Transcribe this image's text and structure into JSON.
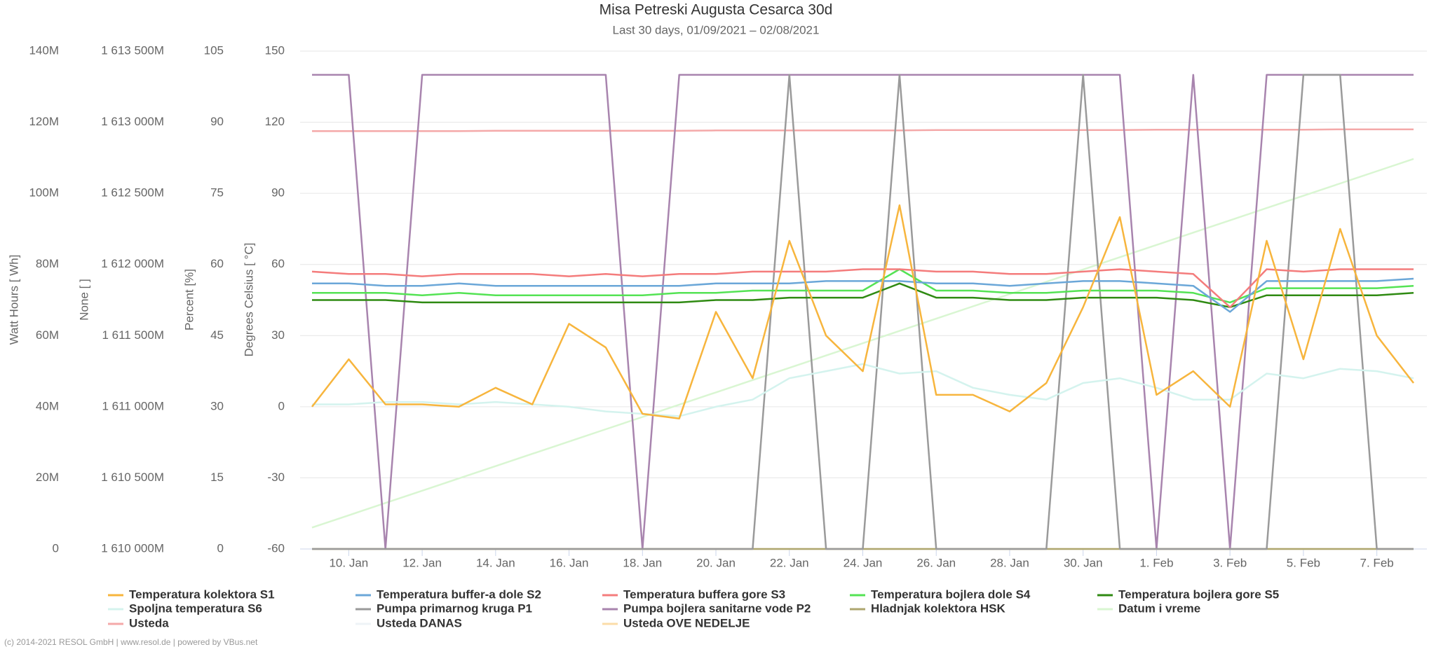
{
  "chart_data": {
    "type": "line",
    "title": "Misa Petreski Augusta Cesarca 30d",
    "subtitle": "Last 30 days, 01/09/2021 – 02/08/2021",
    "credits": "(c) 2014-2021 RESOL GmbH | www.resol.de | powered by VBus.net",
    "x": [
      "2021-01-09",
      "2021-01-10",
      "2021-01-11",
      "2021-01-12",
      "2021-01-13",
      "2021-01-14",
      "2021-01-15",
      "2021-01-16",
      "2021-01-17",
      "2021-01-18",
      "2021-01-19",
      "2021-01-20",
      "2021-01-21",
      "2021-01-22",
      "2021-01-23",
      "2021-01-24",
      "2021-01-25",
      "2021-01-26",
      "2021-01-27",
      "2021-01-28",
      "2021-01-29",
      "2021-01-30",
      "2021-01-31",
      "2021-02-01",
      "2021-02-02",
      "2021-02-03",
      "2021-02-04",
      "2021-02-05",
      "2021-02-06",
      "2021-02-07",
      "2021-02-08"
    ],
    "xlim": [
      "2021-01-09",
      "2021-02-08"
    ],
    "xticks": [
      {
        "value": "2021-01-10",
        "label": "10. Jan"
      },
      {
        "value": "2021-01-12",
        "label": "12. Jan"
      },
      {
        "value": "2021-01-14",
        "label": "14. Jan"
      },
      {
        "value": "2021-01-16",
        "label": "16. Jan"
      },
      {
        "value": "2021-01-18",
        "label": "18. Jan"
      },
      {
        "value": "2021-01-20",
        "label": "20. Jan"
      },
      {
        "value": "2021-01-22",
        "label": "22. Jan"
      },
      {
        "value": "2021-01-24",
        "label": "24. Jan"
      },
      {
        "value": "2021-01-26",
        "label": "26. Jan"
      },
      {
        "value": "2021-01-28",
        "label": "28. Jan"
      },
      {
        "value": "2021-01-30",
        "label": "30. Jan"
      },
      {
        "value": "2021-02-01",
        "label": "1. Feb"
      },
      {
        "value": "2021-02-03",
        "label": "3. Feb"
      },
      {
        "value": "2021-02-05",
        "label": "5. Feb"
      },
      {
        "value": "2021-02-07",
        "label": "7. Feb"
      }
    ],
    "ylabel": "Degrees Celsius [ °C]",
    "ylim": [
      -60,
      150
    ],
    "yticks": [
      -60,
      -30,
      0,
      30,
      60,
      90,
      120,
      150
    ],
    "y2label": "Percent [%]",
    "y2lim": [
      0,
      105
    ],
    "y2ticks": [
      0,
      15,
      30,
      45,
      60,
      75,
      90,
      105
    ],
    "y3label": "None [ ]",
    "y3lim": [
      1610000000000,
      1613500000000
    ],
    "y3ticks": [
      {
        "value": 1610000000000,
        "label": "1 610 000M"
      },
      {
        "value": 1610500000000,
        "label": "1 610 500M"
      },
      {
        "value": 1611000000000,
        "label": "1 611 000M"
      },
      {
        "value": 1611500000000,
        "label": "1 611 500M"
      },
      {
        "value": 1612000000000,
        "label": "1 612 000M"
      },
      {
        "value": 1612500000000,
        "label": "1 612 500M"
      },
      {
        "value": 1613000000000,
        "label": "1 613 000M"
      },
      {
        "value": 1613500000000,
        "label": "1 613 500M"
      }
    ],
    "y4label": "Watt Hours [ Wh]",
    "y4lim": [
      0,
      140000000
    ],
    "y4ticks": [
      0,
      {
        "value": 20000000,
        "label": "20M"
      },
      {
        "value": 40000000,
        "label": "40M"
      },
      {
        "value": 60000000,
        "label": "60M"
      },
      {
        "value": 80000000,
        "label": "80M"
      },
      {
        "value": 100000000,
        "label": "100M"
      },
      {
        "value": 120000000,
        "label": "120M"
      },
      {
        "value": 140000000,
        "label": "140M"
      }
    ],
    "grid": true,
    "series": [
      {
        "name": "Temperatura kolektora S1",
        "color": "#f7b53d",
        "axis": "y",
        "values": [
          0,
          20,
          1,
          1,
          0,
          8,
          1,
          35,
          25,
          -3,
          -5,
          40,
          12,
          70,
          30,
          15,
          85,
          5,
          5,
          -2,
          10,
          42,
          80,
          5,
          15,
          0,
          70,
          20,
          75,
          30,
          10
        ]
      },
      {
        "name": "Temperatura buffer-a dole S2",
        "color": "#6ba7d8",
        "axis": "y",
        "values": [
          52,
          52,
          51,
          51,
          52,
          51,
          51,
          51,
          51,
          51,
          51,
          52,
          52,
          52,
          53,
          53,
          53,
          52,
          52,
          51,
          52,
          53,
          53,
          52,
          51,
          40,
          53,
          53,
          53,
          53,
          54
        ]
      },
      {
        "name": "Temperatura buffera gore S3",
        "color": "#f47c7c",
        "axis": "y",
        "values": [
          57,
          56,
          56,
          55,
          56,
          56,
          56,
          55,
          56,
          55,
          56,
          56,
          57,
          57,
          57,
          58,
          58,
          57,
          57,
          56,
          56,
          57,
          58,
          57,
          56,
          42,
          58,
          57,
          58,
          58,
          58
        ]
      },
      {
        "name": "Temperatura bojlera dole S4",
        "color": "#54e354",
        "axis": "y",
        "values": [
          48,
          48,
          48,
          47,
          48,
          47,
          47,
          47,
          47,
          47,
          48,
          48,
          49,
          49,
          49,
          49,
          58,
          49,
          49,
          48,
          48,
          49,
          49,
          49,
          48,
          44,
          50,
          50,
          50,
          50,
          51
        ]
      },
      {
        "name": "Temperatura bojlera gore S5",
        "color": "#2f8a12",
        "axis": "y",
        "values": [
          45,
          45,
          45,
          44,
          44,
          44,
          44,
          44,
          44,
          44,
          44,
          45,
          45,
          46,
          46,
          46,
          52,
          46,
          46,
          45,
          45,
          46,
          46,
          46,
          45,
          42,
          47,
          47,
          47,
          47,
          48
        ]
      },
      {
        "name": "Spoljna temperatura S6",
        "color": "#d4f3ee",
        "axis": "y",
        "values": [
          1,
          1,
          2,
          2,
          1,
          2,
          1,
          0,
          -2,
          -3,
          -4,
          0,
          3,
          12,
          15,
          18,
          14,
          15,
          8,
          5,
          3,
          10,
          12,
          8,
          3,
          3,
          14,
          12,
          16,
          15,
          12
        ]
      },
      {
        "name": "Pumpa primarnog kruga P1",
        "color": "#9a9a9a",
        "axis": "y2",
        "values": [
          0,
          0,
          0,
          0,
          0,
          0,
          0,
          0,
          0,
          0,
          0,
          0,
          0,
          100,
          0,
          0,
          100,
          0,
          0,
          0,
          0,
          100,
          0,
          0,
          0,
          0,
          0,
          100,
          100,
          0,
          0
        ]
      },
      {
        "name": "Pumpa bojlera sanitarne vode P2",
        "color": "#a884ae",
        "axis": "y2",
        "values": [
          100,
          100,
          0,
          100,
          100,
          100,
          100,
          100,
          100,
          0,
          100,
          100,
          100,
          100,
          100,
          100,
          100,
          100,
          100,
          100,
          100,
          100,
          100,
          0,
          100,
          0,
          100,
          100,
          100,
          100,
          100
        ]
      },
      {
        "name": "Hladnjak kolektora HSK",
        "color": "#aea66f",
        "axis": "y2",
        "values": [
          0,
          0,
          0,
          0,
          0,
          0,
          0,
          0,
          0,
          0,
          0,
          0,
          0,
          0,
          0,
          0,
          0,
          0,
          0,
          0,
          0,
          0,
          0,
          0,
          0,
          0,
          0,
          0,
          0,
          0,
          0
        ]
      },
      {
        "name": "Datum i vreme",
        "color": "#d9f6d2",
        "axis": "y3",
        "values": [
          1610150400000,
          1610236800000,
          1610323200000,
          1610409600000,
          1610496000000,
          1610582400000,
          1610668800000,
          1610755200000,
          1610841600000,
          1610928000000,
          1611014400000,
          1611100800000,
          1611187200000,
          1611273600000,
          1611360000000,
          1611446400000,
          1611532800000,
          1611619200000,
          1611705600000,
          1611792000000,
          1611878400000,
          1611964800000,
          1612051200000,
          1612137600000,
          1612224000000,
          1612310400000,
          1612396800000,
          1612483200000,
          1612569600000,
          1612656000000,
          1612742400000
        ]
      },
      {
        "name": "Usteda",
        "color": "#f4a9a9",
        "axis": "y4",
        "values": [
          117500000,
          117500000,
          117500000,
          117500000,
          117500000,
          117600000,
          117600000,
          117600000,
          117600000,
          117600000,
          117600000,
          117700000,
          117700000,
          117700000,
          117700000,
          117700000,
          117700000,
          117800000,
          117800000,
          117800000,
          117800000,
          117800000,
          117800000,
          117900000,
          117900000,
          117900000,
          117900000,
          117900000,
          118000000,
          118000000,
          118000000
        ]
      },
      {
        "name": "Usteda DANAS",
        "color": "#eef3f7",
        "axis": "y4",
        "values": [
          0,
          0,
          0,
          0,
          0,
          0,
          0,
          0,
          0,
          0,
          0,
          0,
          0,
          0,
          0,
          0,
          0,
          0,
          0,
          0,
          0,
          0,
          0,
          0,
          0,
          0,
          0,
          0,
          0,
          0,
          0
        ]
      },
      {
        "name": "Usteda OVE NEDELJE",
        "color": "#fbdca8",
        "axis": "y4",
        "values": [
          0,
          0,
          0,
          0,
          0,
          0,
          0,
          0,
          0,
          0,
          0,
          0,
          0,
          0,
          0,
          0,
          0,
          0,
          0,
          0,
          0,
          0,
          0,
          0,
          0,
          0,
          0,
          0,
          0,
          0,
          0
        ]
      }
    ]
  }
}
